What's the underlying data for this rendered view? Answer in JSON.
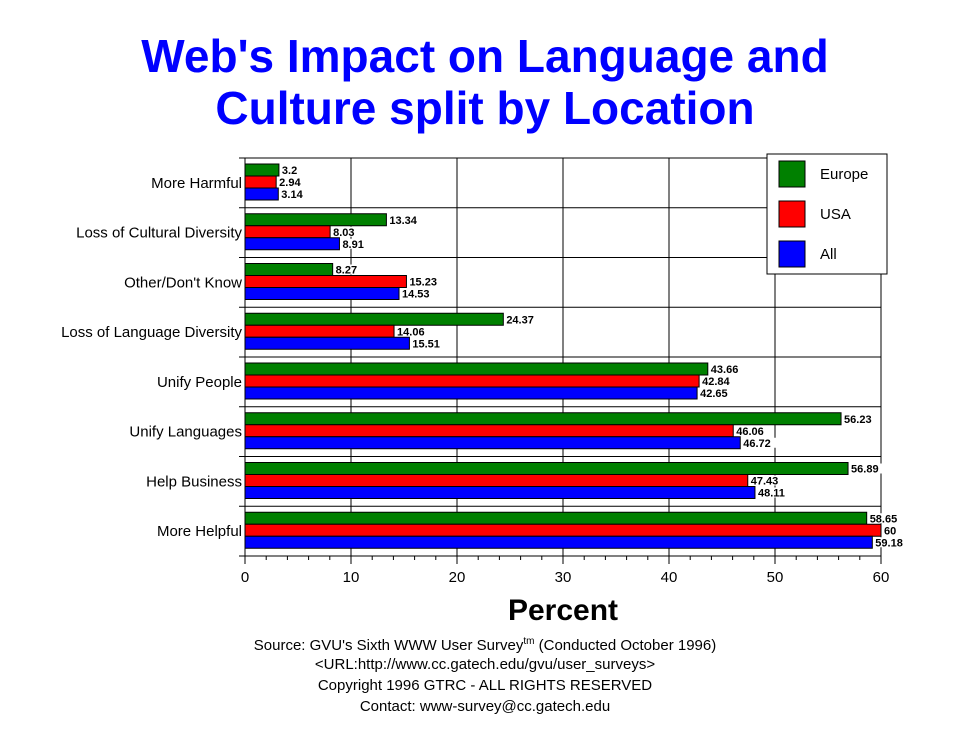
{
  "chart_data": {
    "type": "bar",
    "orientation": "horizontal",
    "title_lines": [
      "Web's Impact on Language and",
      "Culture split by Location"
    ],
    "xlabel": "Percent",
    "ylabel": "",
    "xlim": [
      0,
      60
    ],
    "xticks": [
      "0",
      "10",
      "20",
      "30",
      "40",
      "50",
      "60"
    ],
    "grid": "vertical",
    "legend_position": "top-right",
    "categories": [
      "More Harmful",
      "Loss of Cultural Diversity",
      "Other/Don't Know",
      "Loss of Language Diversity",
      "Unify People",
      "Unify Languages",
      "Help Business",
      "More Helpful"
    ],
    "series": [
      {
        "name": "Europe",
        "color": "#008000",
        "values": [
          3.2,
          13.34,
          8.27,
          24.37,
          43.66,
          56.23,
          56.89,
          58.65
        ],
        "labels": [
          "3.2",
          "13.34",
          "8.27",
          "24.37",
          "43.66",
          "56.23",
          "56.89",
          "58.65"
        ]
      },
      {
        "name": "USA",
        "color": "#ff0000",
        "values": [
          2.94,
          8.03,
          15.23,
          14.06,
          42.84,
          46.06,
          47.43,
          60
        ],
        "labels": [
          "2.94",
          "8.03",
          "15.23",
          "14.06",
          "42.84",
          "46.06",
          "47.43",
          "60"
        ]
      },
      {
        "name": "All",
        "color": "#0000ff",
        "values": [
          3.14,
          8.91,
          14.53,
          15.51,
          42.65,
          46.72,
          48.11,
          59.18
        ],
        "labels": [
          "3.14",
          "8.91",
          "14.53",
          "15.51",
          "42.65",
          "46.72",
          "48.11",
          "59.18"
        ]
      }
    ]
  },
  "footer": {
    "source_prefix": "Source: GVU's Sixth WWW User Survey",
    "source_sup": "tm",
    "source_suffix": "  (Conducted October 1996)",
    "url": "<URL:http://www.cc.gatech.edu/gvu/user_surveys>",
    "copyright": "Copyright 1996 GTRC -  ALL RIGHTS RESERVED",
    "contact": "Contact: www-survey@cc.gatech.edu"
  }
}
